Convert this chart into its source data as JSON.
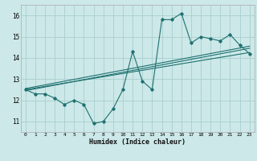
{
  "xlabel": "Humidex (Indice chaleur)",
  "background_color": "#cce8e8",
  "grid_color": "#aacece",
  "line_color": "#1e7070",
  "xlim": [
    -0.5,
    23.5
  ],
  "ylim": [
    10.5,
    16.5
  ],
  "xticks": [
    0,
    1,
    2,
    3,
    4,
    5,
    6,
    7,
    8,
    9,
    10,
    11,
    12,
    13,
    14,
    15,
    16,
    17,
    18,
    19,
    20,
    21,
    22,
    23
  ],
  "yticks": [
    11,
    12,
    13,
    14,
    15,
    16
  ],
  "main_x": [
    0,
    1,
    2,
    3,
    4,
    5,
    6,
    7,
    8,
    9,
    10,
    11,
    12,
    13,
    14,
    15,
    16,
    17,
    18,
    19,
    20,
    21,
    22,
    23
  ],
  "main_y": [
    12.5,
    12.3,
    12.3,
    12.1,
    11.8,
    12.0,
    11.8,
    10.9,
    11.0,
    11.6,
    12.5,
    14.3,
    12.9,
    12.5,
    15.8,
    15.8,
    16.1,
    14.7,
    15.0,
    14.9,
    14.8,
    15.1,
    14.6,
    14.2
  ],
  "line1_x": [
    0,
    23
  ],
  "line1_y": [
    12.5,
    14.25
  ],
  "line2_x": [
    0,
    23
  ],
  "line2_y": [
    12.55,
    14.55
  ],
  "line3_x": [
    0,
    23
  ],
  "line3_y": [
    12.45,
    14.45
  ]
}
